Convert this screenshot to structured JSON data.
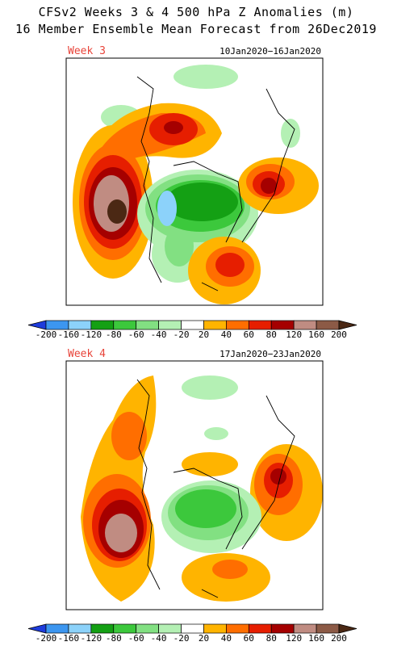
{
  "title": [
    "CFSv2 Weeks 3 & 4 500 hPa Z Anomalies (m)",
    "16 Member Ensemble Mean Forecast from 26Dec2019"
  ],
  "panels": [
    {
      "label": "Week 3",
      "dates": "10Jan2020−16Jan2020"
    },
    {
      "label": "Week 4",
      "dates": "17Jan2020−23Jan2020"
    }
  ],
  "colorbar": {
    "ticks": [
      -200,
      -160,
      -120,
      -80,
      -60,
      -40,
      -20,
      20,
      40,
      60,
      80,
      120,
      160,
      200
    ],
    "colors": [
      "#1e3cdc",
      "#3c96f0",
      "#8cd2fa",
      "#14a014",
      "#3cc83c",
      "#82e082",
      "#b4f0b4",
      "#ffffff",
      "#ffb400",
      "#ff6e00",
      "#e61e00",
      "#a50000",
      "#c08c82",
      "#8c5a46",
      "#4b2814"
    ]
  }
}
